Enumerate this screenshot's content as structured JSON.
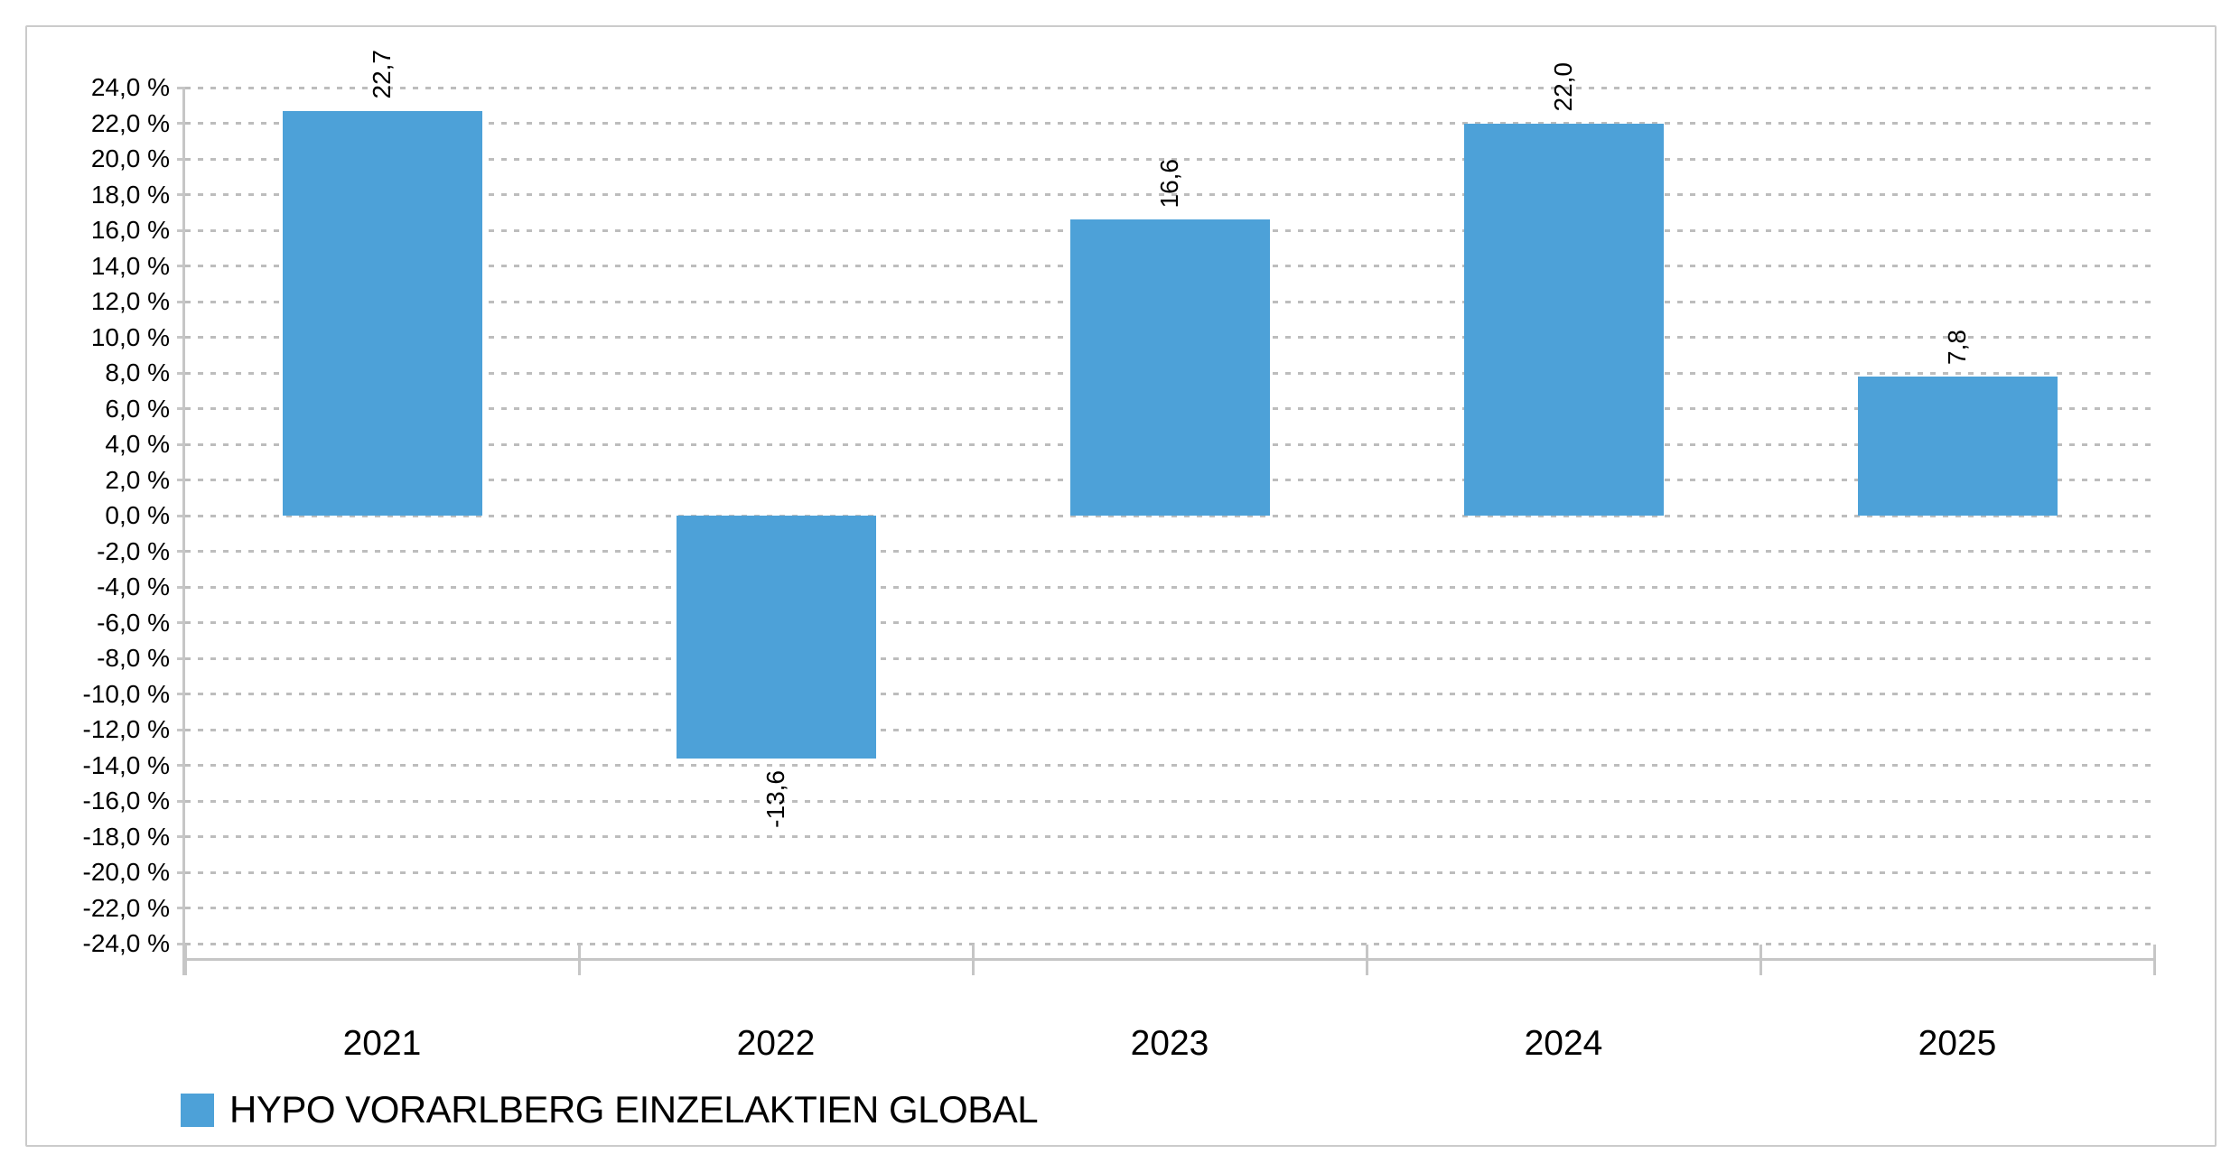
{
  "chart_data": {
    "type": "bar",
    "title": "",
    "categories": [
      "2021",
      "2022",
      "2023",
      "2024",
      "2025"
    ],
    "series": [
      {
        "name": "HYPO VORARLBERG EINZELAKTIEN GLOBAL",
        "values": [
          22.7,
          -13.6,
          16.6,
          22.0,
          7.8
        ]
      }
    ],
    "value_labels": [
      "22,7",
      "-13,6",
      "16,6",
      "22,0",
      "7,8"
    ],
    "value_label_rotation": "vertical-bottom-to-top",
    "y_axis": {
      "min": -24,
      "max": 24,
      "step": 2,
      "unit": "%",
      "tick_labels": [
        "24,0 %",
        "22,0 %",
        "20,0 %",
        "18,0 %",
        "16,0 %",
        "14,0 %",
        "12,0 %",
        "10,0 %",
        "8,0 %",
        "6,0 %",
        "4,0 %",
        "2,0 %",
        "0,0 %",
        "-2,0 %",
        "-4,0 %",
        "-6,0 %",
        "-8,0 %",
        "-10,0 %",
        "-12,0 %",
        "-14,0 %",
        "-16,0 %",
        "-18,0 %",
        "-20,0 %",
        "-22,0 %",
        "-24,0 %"
      ]
    },
    "grid": "horizontal-dotted",
    "legend_position": "bottom-left"
  },
  "legend": {
    "label": "HYPO VORARLBERG EINZELAKTIEN GLOBAL"
  },
  "colors": {
    "bar": "#4da1d8",
    "axis": "#c6c6c6",
    "gridline": "#bdbdbd",
    "border": "#cbcbcb",
    "text": "#000000"
  }
}
